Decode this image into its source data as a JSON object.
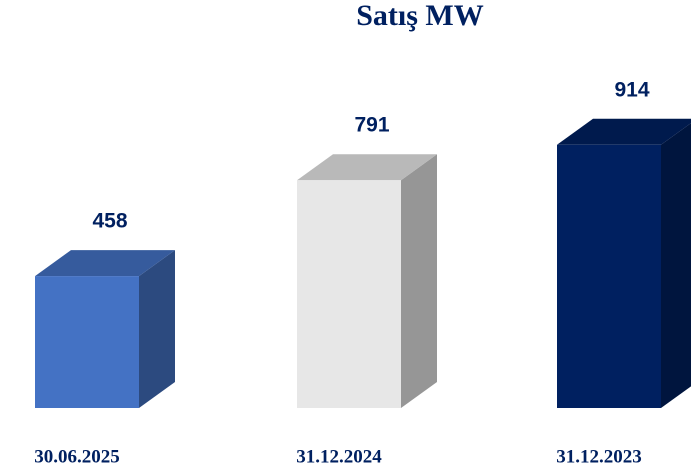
{
  "chart_data": {
    "type": "bar3d",
    "title": "Satış MW",
    "categories": [
      "30.06.2025",
      "31.12.2024",
      "31.12.2023"
    ],
    "values": [
      458,
      791,
      914
    ],
    "colors": [
      "#4472c4",
      "#e7e7e7",
      "#002060"
    ]
  }
}
